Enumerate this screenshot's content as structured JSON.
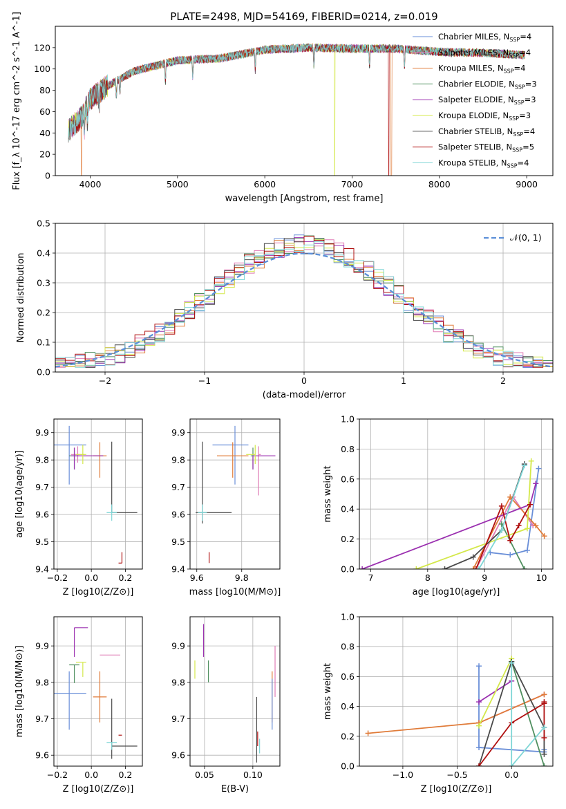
{
  "figure_title": "PLATE=2498, MJD=54169, FIBERID=0214, z=0.019",
  "colors": {
    "chabrier_miles": "#6a8fd8",
    "salpeter_miles": "#e07bb5",
    "kroupa_miles": "#e07b39",
    "chabrier_elodie": "#4f8f5f",
    "salpeter_elodie": "#9b30b0",
    "kroupa_elodie": "#d4e84a",
    "chabrier_stelib": "#4a4a4a",
    "salpeter_stelib": "#b01010",
    "kroupa_stelib": "#7fd6d6"
  },
  "chart_data": [
    {
      "id": "spectrum",
      "type": "line",
      "xlabel": "wavelength [Angstrom, rest frame]",
      "ylabel": "Flux [f_λ 10^-17 erg cm^-2 s^-1 A^-1]",
      "xlim": [
        3600,
        9300
      ],
      "ylim": [
        0,
        140
      ],
      "xticks": [
        4000,
        5000,
        6000,
        7000,
        8000,
        9000
      ],
      "yticks": [
        0,
        20,
        40,
        60,
        80,
        100,
        120
      ],
      "legend_position": "right",
      "series": [
        {
          "name": "Chabrier MILES, N_SSP=4",
          "color_key": "chabrier_miles"
        },
        {
          "name": "Salpeter MILES, N_SSP=4",
          "color_key": "salpeter_miles"
        },
        {
          "name": "Kroupa MILES, N_SSP=4",
          "color_key": "kroupa_miles"
        },
        {
          "name": "Chabrier ELODIE, N_SSP=3",
          "color_key": "chabrier_elodie"
        },
        {
          "name": "Salpeter ELODIE, N_SSP=3",
          "color_key": "salpeter_elodie"
        },
        {
          "name": "Kroupa ELODIE, N_SSP=3",
          "color_key": "kroupa_elodie"
        },
        {
          "name": "Chabrier STELIB, N_SSP=4",
          "color_key": "chabrier_stelib"
        },
        {
          "name": "Salpeter STELIB, N_SSP=5",
          "color_key": "salpeter_stelib"
        },
        {
          "name": "Kroupa STELIB, N_SSP=4",
          "color_key": "kroupa_stelib"
        }
      ],
      "continuum": {
        "x": [
          3750,
          3900,
          4000,
          4200,
          4500,
          5000,
          5500,
          6000,
          6500,
          7000,
          7500,
          8000,
          8500,
          9000
        ],
        "y": [
          42,
          55,
          72,
          84,
          98,
          108,
          110,
          118,
          120,
          119,
          119,
          116,
          115,
          113
        ]
      },
      "cutoffs": [
        {
          "color_key": "kroupa_miles",
          "x": 3900
        },
        {
          "color_key": "kroupa_elodie",
          "x": 6800
        },
        {
          "color_key": "salpeter_stelib",
          "x": 7420
        },
        {
          "color_key": "kroupa_miles",
          "x": 7450
        }
      ]
    },
    {
      "id": "residuals",
      "type": "histogram",
      "xlabel": "(data-model)/error",
      "ylabel": "Normed distribution",
      "xlim": [
        -2.5,
        2.5
      ],
      "ylim": [
        0,
        0.5
      ],
      "xticks": [
        -2,
        -1,
        0,
        1,
        2
      ],
      "yticks": [
        0.0,
        0.1,
        0.2,
        0.3,
        0.4,
        0.5
      ],
      "legend": "𝒩(0, 1)",
      "legend_position": "top-right",
      "gaussian_color": "#5b8fd8"
    },
    {
      "id": "age_vs_Z",
      "type": "errorbar",
      "xlabel": "Z [log10(Z/Z⊙)]",
      "ylabel": "age  [log10(age/yr)]",
      "xlim": [
        -0.22,
        0.3
      ],
      "ylim": [
        9.4,
        9.95
      ],
      "xticks": [
        -0.2,
        0.0,
        0.2
      ],
      "yticks": [
        9.4,
        9.5,
        9.6,
        9.7,
        9.8,
        9.9
      ],
      "points": [
        {
          "color_key": "chabrier_miles",
          "x": -0.13,
          "y": 9.855,
          "xerr": [
            0.09,
            0.1
          ],
          "yerr": [
            0.145,
            0.07
          ]
        },
        {
          "color_key": "salpeter_miles",
          "x": -0.08,
          "y": 9.82,
          "xerr": [
            0.04,
            0.04
          ],
          "yerr": [
            0.03,
            0.03
          ]
        },
        {
          "color_key": "kroupa_miles",
          "x": 0.05,
          "y": 9.815,
          "xerr": [
            0.04,
            0.04
          ],
          "yerr": [
            0.08,
            0.05
          ]
        },
        {
          "color_key": "chabrier_elodie",
          "x": -0.1,
          "y": 9.815,
          "xerr": [
            0.03,
            0.03
          ],
          "yerr": [
            0.05,
            0.03
          ]
        },
        {
          "color_key": "salpeter_elodie",
          "x": -0.1,
          "y": 9.815,
          "xerr": [
            0.02,
            0.17
          ],
          "yerr": [
            0.05,
            0.03
          ]
        },
        {
          "color_key": "kroupa_elodie",
          "x": -0.05,
          "y": 9.82,
          "xerr": [
            0.04,
            0.02
          ],
          "yerr": [
            0.035,
            0.035
          ]
        },
        {
          "color_key": "chabrier_stelib",
          "x": 0.12,
          "y": 9.607,
          "xerr": [
            0.0,
            0.15
          ],
          "yerr": [
            0.0,
            0.26
          ]
        },
        {
          "color_key": "salpeter_stelib",
          "x": 0.18,
          "y": 9.422,
          "xerr": [
            0.02,
            0.0
          ],
          "yerr": [
            0.0,
            0.04
          ]
        },
        {
          "color_key": "kroupa_stelib",
          "x": 0.12,
          "y": 9.607,
          "xerr": [
            0.03,
            0.03
          ],
          "yerr": [
            0.03,
            0.03
          ]
        }
      ]
    },
    {
      "id": "age_vs_mass",
      "type": "errorbar",
      "xlabel": "mass [log10(M/M⊙)]",
      "ylabel": "",
      "xlim": [
        9.57,
        9.97
      ],
      "ylim": [
        9.4,
        9.95
      ],
      "xticks": [
        9.6,
        9.8
      ],
      "yticks": [
        9.4,
        9.5,
        9.6,
        9.7,
        9.8,
        9.9
      ],
      "points": [
        {
          "color_key": "chabrier_miles",
          "x": 9.77,
          "y": 9.855,
          "xerr": [
            0.1,
            0.06
          ],
          "yerr": [
            0.145,
            0.07
          ]
        },
        {
          "color_key": "salpeter_miles",
          "x": 9.875,
          "y": 9.82,
          "xerr": [
            0.0,
            0.01
          ],
          "yerr": [
            0.15,
            0.03
          ]
        },
        {
          "color_key": "kroupa_miles",
          "x": 9.76,
          "y": 9.815,
          "xerr": [
            0.07,
            0.07
          ],
          "yerr": [
            0.08,
            0.05
          ]
        },
        {
          "color_key": "chabrier_elodie",
          "x": 9.85,
          "y": 9.815,
          "xerr": [
            0.01,
            0.0
          ],
          "yerr": [
            0.05,
            0.03
          ]
        },
        {
          "color_key": "salpeter_elodie",
          "x": 9.85,
          "y": 9.815,
          "xerr": [
            0.0,
            0.1
          ],
          "yerr": [
            0.05,
            0.0
          ]
        },
        {
          "color_key": "kroupa_elodie",
          "x": 9.86,
          "y": 9.82,
          "xerr": [
            0.04,
            0.0
          ],
          "yerr": [
            0.035,
            0.035
          ]
        },
        {
          "color_key": "chabrier_stelib",
          "x": 9.625,
          "y": 9.607,
          "xerr": [
            0.03,
            0.13
          ],
          "yerr": [
            0.04,
            0.26
          ]
        },
        {
          "color_key": "salpeter_stelib",
          "x": 9.655,
          "y": 9.422,
          "xerr": [
            0.0,
            0.0
          ],
          "yerr": [
            0.0,
            0.04
          ]
        },
        {
          "color_key": "kroupa_stelib",
          "x": 9.625,
          "y": 9.607,
          "xerr": [
            0.02,
            0.02
          ],
          "yerr": [
            0.03,
            0.03
          ]
        }
      ]
    },
    {
      "id": "mass_weight_vs_age",
      "type": "line",
      "xlabel": "age  [log10(age/yr)]",
      "ylabel": "mass weight",
      "xlim": [
        6.8,
        10.2
      ],
      "ylim": [
        0,
        1
      ],
      "xticks": [
        7,
        8,
        9,
        10
      ],
      "yticks": [
        0.0,
        0.2,
        0.4,
        0.6,
        0.8,
        1.0
      ],
      "series": [
        {
          "color_key": "chabrier_miles",
          "x": [
            9.1,
            9.45,
            9.75,
            9.95
          ],
          "y": [
            0.11,
            0.095,
            0.125,
            0.67
          ]
        },
        {
          "color_key": "salpeter_miles",
          "x": [
            8.85,
            9.5,
            9.85
          ],
          "y": [
            0.0,
            0.48,
            0.29
          ]
        },
        {
          "color_key": "kroupa_miles",
          "x": [
            8.8,
            9.45,
            9.9,
            10.05
          ],
          "y": [
            0.0,
            0.48,
            0.29,
            0.22
          ]
        },
        {
          "color_key": "chabrier_elodie",
          "x": [
            9.3,
            9.7
          ],
          "y": [
            0.3,
            0.0
          ]
        },
        {
          "color_key": "salpeter_elodie",
          "x": [
            6.85,
            9.8,
            9.9
          ],
          "y": [
            0.0,
            0.43,
            0.57
          ]
        },
        {
          "color_key": "kroupa_elodie",
          "x": [
            7.8,
            9.75,
            9.82
          ],
          "y": [
            0.0,
            0.27,
            0.72
          ]
        },
        {
          "color_key": "chabrier_stelib",
          "x": [
            8.3,
            8.8,
            9.3,
            9.7
          ],
          "y": [
            0.0,
            0.08,
            0.26,
            0.7
          ]
        },
        {
          "color_key": "salpeter_stelib",
          "x": [
            8.85,
            9.3,
            9.45,
            9.6,
            9.8
          ],
          "y": [
            0.0,
            0.42,
            0.19,
            0.29,
            0.43
          ]
        },
        {
          "color_key": "kroupa_stelib",
          "x": [
            8.9,
            9.3,
            9.7
          ],
          "y": [
            0.0,
            0.26,
            0.69
          ]
        }
      ]
    },
    {
      "id": "mass_vs_Z",
      "type": "errorbar",
      "xlabel": "Z [log10(Z/Z⊙)]",
      "ylabel": "mass [log10(M/M⊙)]",
      "xlim": [
        -0.22,
        0.3
      ],
      "ylim": [
        9.57,
        9.98
      ],
      "xticks": [
        -0.2,
        0.0,
        0.2
      ],
      "yticks": [
        9.6,
        9.7,
        9.8,
        9.9
      ],
      "points": [
        {
          "color_key": "chabrier_miles",
          "x": -0.13,
          "y": 9.77,
          "xerr": [
            0.09,
            0.1
          ],
          "yerr": [
            0.1,
            0.06
          ]
        },
        {
          "color_key": "salpeter_miles",
          "x": 0.05,
          "y": 9.875,
          "xerr": [
            0.0,
            0.12
          ],
          "yerr": [
            0.0,
            0.0
          ]
        },
        {
          "color_key": "kroupa_miles",
          "x": 0.05,
          "y": 9.76,
          "xerr": [
            0.04,
            0.04
          ],
          "yerr": [
            0.07,
            0.07
          ]
        },
        {
          "color_key": "chabrier_elodie",
          "x": -0.1,
          "y": 9.848,
          "xerr": [
            0.03,
            0.03
          ],
          "yerr": [
            0.05,
            0.0
          ]
        },
        {
          "color_key": "salpeter_elodie",
          "x": -0.1,
          "y": 9.95,
          "xerr": [
            0.0,
            0.08
          ],
          "yerr": [
            0.08,
            0.0
          ]
        },
        {
          "color_key": "kroupa_elodie",
          "x": -0.05,
          "y": 9.855,
          "xerr": [
            0.04,
            0.02
          ],
          "yerr": [
            0.04,
            0.0
          ]
        },
        {
          "color_key": "chabrier_stelib",
          "x": 0.12,
          "y": 9.625,
          "xerr": [
            0.0,
            0.15
          ],
          "yerr": [
            0.035,
            0.13
          ]
        },
        {
          "color_key": "salpeter_stelib",
          "x": 0.18,
          "y": 9.655,
          "xerr": [
            0.02,
            0.0
          ],
          "yerr": [
            0.0,
            0.0
          ]
        },
        {
          "color_key": "kroupa_stelib",
          "x": 0.12,
          "y": 9.635,
          "xerr": [
            0.03,
            0.03
          ],
          "yerr": [
            0.02,
            0.0
          ]
        }
      ]
    },
    {
      "id": "mass_vs_ebv",
      "type": "errorbar",
      "xlabel": "E(B-V)",
      "ylabel": "",
      "xlim": [
        0.035,
        0.128
      ],
      "ylim": [
        9.57,
        9.98
      ],
      "xticks": [
        0.05,
        0.1
      ],
      "yticks": [
        9.6,
        9.7,
        9.8,
        9.9
      ],
      "points": [
        {
          "color_key": "kroupa_elodie",
          "x": 0.04,
          "y": 9.835,
          "xerr": [
            0,
            0
          ],
          "yerr": [
            0.025,
            0.025
          ]
        },
        {
          "color_key": "salpeter_elodie",
          "x": 0.049,
          "y": 9.915,
          "xerr": [
            0,
            0
          ],
          "yerr": [
            0.045,
            0.045
          ]
        },
        {
          "color_key": "chabrier_elodie",
          "x": 0.054,
          "y": 9.83,
          "xerr": [
            0,
            0
          ],
          "yerr": [
            0.03,
            0.03
          ]
        },
        {
          "color_key": "chabrier_stelib",
          "x": 0.104,
          "y": 9.67,
          "xerr": [
            0,
            0
          ],
          "yerr": [
            0.09,
            0.09
          ]
        },
        {
          "color_key": "salpeter_stelib",
          "x": 0.105,
          "y": 9.645,
          "xerr": [
            0,
            0
          ],
          "yerr": [
            0.02,
            0.02
          ]
        },
        {
          "color_key": "kroupa_stelib",
          "x": 0.107,
          "y": 9.625,
          "xerr": [
            0,
            0
          ],
          "yerr": [
            0.02,
            0.02
          ]
        },
        {
          "color_key": "kroupa_miles",
          "x": 0.12,
          "y": 9.76,
          "xerr": [
            0,
            0
          ],
          "yerr": [
            0.07,
            0.07
          ]
        },
        {
          "color_key": "chabrier_miles",
          "x": 0.12,
          "y": 9.74,
          "xerr": [
            0,
            0
          ],
          "yerr": [
            0.07,
            0.07
          ]
        },
        {
          "color_key": "salpeter_miles",
          "x": 0.123,
          "y": 9.83,
          "xerr": [
            0,
            0
          ],
          "yerr": [
            0.07,
            0.07
          ]
        }
      ]
    },
    {
      "id": "mass_weight_vs_Z",
      "type": "line",
      "xlabel": "Z [log10(Z/Z⊙)]",
      "ylabel": "mass weight",
      "xlim": [
        -1.4,
        0.38
      ],
      "ylim": [
        0,
        1
      ],
      "xticks": [
        -1.0,
        -0.5,
        0.0
      ],
      "yticks": [
        0.0,
        0.2,
        0.4,
        0.6,
        0.8,
        1.0
      ],
      "series": [
        {
          "color_key": "chabrier_miles",
          "x": [
            -0.3,
            -0.3,
            0.3,
            0.3
          ],
          "y": [
            0.67,
            0.125,
            0.095,
            0.11
          ]
        },
        {
          "color_key": "salpeter_miles",
          "x": [
            -0.3,
            0.3
          ],
          "y": [
            0.29,
            0.48
          ]
        },
        {
          "color_key": "kroupa_miles",
          "x": [
            -1.32,
            -0.3,
            0.3
          ],
          "y": [
            0.22,
            0.29,
            0.48
          ]
        },
        {
          "color_key": "chabrier_elodie",
          "x": [
            0.0,
            0.3
          ],
          "y": [
            0.7,
            0.0
          ]
        },
        {
          "color_key": "salpeter_elodie",
          "x": [
            -0.3,
            0.0
          ],
          "y": [
            0.43,
            0.57
          ]
        },
        {
          "color_key": "kroupa_elodie",
          "x": [
            -0.3,
            0.0
          ],
          "y": [
            0.27,
            0.72
          ]
        },
        {
          "color_key": "chabrier_stelib",
          "x": [
            -0.3,
            0.0,
            0.3,
            0.3
          ],
          "y": [
            0.0,
            0.7,
            0.26,
            0.08
          ]
        },
        {
          "color_key": "salpeter_stelib",
          "x": [
            -0.3,
            0.0,
            0.3,
            0.3,
            0.3
          ],
          "y": [
            0.0,
            0.29,
            0.42,
            0.43,
            0.19
          ]
        },
        {
          "color_key": "kroupa_stelib",
          "x": [
            0.0,
            0.0,
            0.3
          ],
          "y": [
            0.69,
            0.0,
            0.26
          ]
        }
      ]
    }
  ]
}
